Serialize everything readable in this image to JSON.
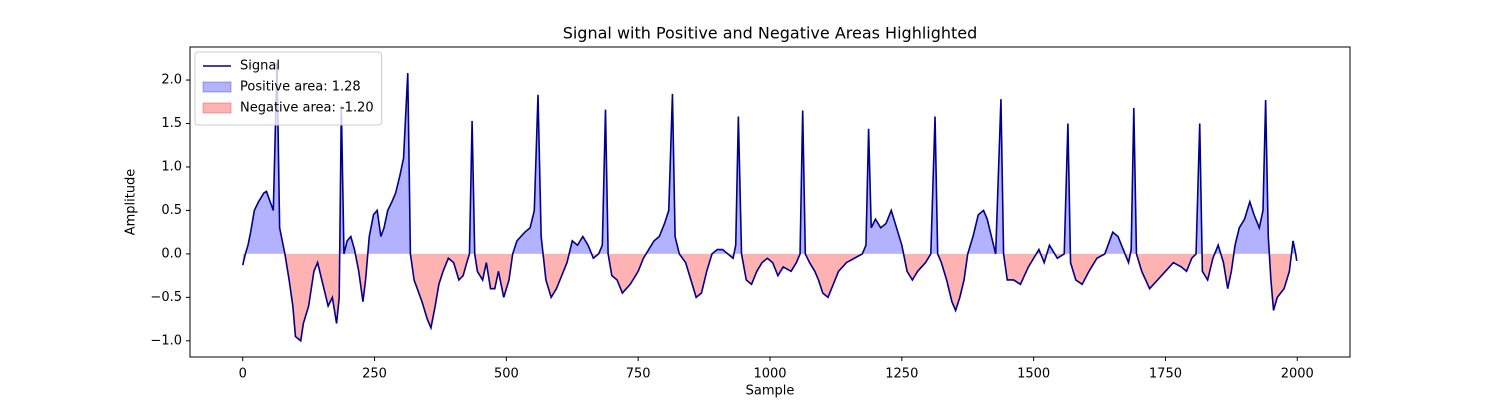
{
  "chart_data": {
    "type": "line",
    "title": "Signal with Positive and Negative Areas Highlighted",
    "xlabel": "Sample",
    "ylabel": "Amplitude",
    "xlim": [
      -100,
      2100
    ],
    "ylim": [
      -1.186,
      2.38
    ],
    "xticks": [
      0,
      250,
      500,
      750,
      1000,
      1250,
      1500,
      1750,
      2000
    ],
    "yticks": [
      {
        "value": -1.0,
        "label": "−1.0"
      },
      {
        "value": -0.5,
        "label": "−0.5"
      },
      {
        "value": 0.0,
        "label": "0.0"
      },
      {
        "value": 0.5,
        "label": "0.5"
      },
      {
        "value": 1.0,
        "label": "1.0"
      },
      {
        "value": 1.5,
        "label": "1.5"
      },
      {
        "value": 2.0,
        "label": "2.0"
      }
    ],
    "legend": "upper left",
    "x": [
      0,
      5,
      10,
      15,
      22,
      30,
      40,
      45,
      52,
      58,
      65,
      70,
      75,
      80,
      88,
      95,
      100,
      110,
      115,
      125,
      135,
      142,
      150,
      162,
      170,
      178,
      183,
      187,
      192,
      198,
      205,
      212,
      220,
      228,
      233,
      240,
      248,
      255,
      262,
      268,
      275,
      283,
      290,
      298,
      305,
      313,
      318,
      325,
      340,
      350,
      357,
      365,
      372,
      380,
      390,
      400,
      410,
      418,
      425,
      430,
      435,
      440,
      445,
      455,
      462,
      470,
      478,
      485,
      495,
      505,
      512,
      520,
      535,
      545,
      553,
      560,
      566,
      575,
      585,
      595,
      605,
      615,
      625,
      635,
      645,
      655,
      665,
      675,
      682,
      688,
      693,
      700,
      710,
      720,
      735,
      750,
      760,
      770,
      780,
      790,
      800,
      808,
      815,
      820,
      828,
      840,
      850,
      860,
      870,
      880,
      890,
      900,
      910,
      920,
      930,
      935,
      940,
      946,
      955,
      965,
      975,
      985,
      995,
      1005,
      1015,
      1025,
      1040,
      1050,
      1057,
      1062,
      1067,
      1075,
      1085,
      1092,
      1100,
      1110,
      1120,
      1130,
      1145,
      1160,
      1175,
      1182,
      1187,
      1192,
      1200,
      1210,
      1220,
      1230,
      1240,
      1250,
      1260,
      1270,
      1280,
      1295,
      1305,
      1313,
      1318,
      1325,
      1335,
      1345,
      1352,
      1360,
      1368,
      1375,
      1385,
      1395,
      1405,
      1412,
      1420,
      1428,
      1438,
      1443,
      1450,
      1462,
      1475,
      1490,
      1500,
      1510,
      1520,
      1530,
      1545,
      1558,
      1565,
      1570,
      1580,
      1592,
      1605,
      1620,
      1635,
      1650,
      1660,
      1670,
      1680,
      1685,
      1690,
      1695,
      1705,
      1720,
      1735,
      1750,
      1765,
      1780,
      1790,
      1800,
      1808,
      1815,
      1820,
      1830,
      1840,
      1850,
      1860,
      1868,
      1875,
      1882,
      1890,
      1900,
      1910,
      1918,
      1928,
      1935,
      1940,
      1945,
      1950,
      1955,
      1962,
      1975,
      1985,
      1992,
      1997,
      1999
    ],
    "series": [
      {
        "name": "Signal",
        "color": "#00008b",
        "values": [
          -0.13,
          0.0,
          0.1,
          0.25,
          0.5,
          0.6,
          0.7,
          0.72,
          0.6,
          0.5,
          2.2,
          0.3,
          0.15,
          0.0,
          -0.3,
          -0.6,
          -0.95,
          -1.0,
          -0.8,
          -0.6,
          -0.2,
          -0.1,
          -0.3,
          -0.6,
          -0.5,
          -0.8,
          -0.5,
          1.7,
          0.0,
          0.15,
          0.2,
          0.05,
          -0.2,
          -0.55,
          -0.3,
          0.2,
          0.45,
          0.5,
          0.2,
          0.3,
          0.5,
          0.6,
          0.7,
          0.9,
          1.1,
          2.08,
          0.0,
          -0.3,
          -0.55,
          -0.75,
          -0.85,
          -0.6,
          -0.35,
          -0.2,
          -0.05,
          -0.1,
          -0.3,
          -0.25,
          -0.1,
          0.0,
          1.53,
          0.0,
          -0.2,
          -0.3,
          -0.1,
          -0.4,
          -0.4,
          -0.2,
          -0.5,
          -0.3,
          0.0,
          0.15,
          0.25,
          0.3,
          0.5,
          1.83,
          0.2,
          -0.3,
          -0.5,
          -0.4,
          -0.25,
          -0.1,
          0.15,
          0.1,
          0.2,
          0.1,
          -0.05,
          0.0,
          0.1,
          1.66,
          0.0,
          -0.25,
          -0.3,
          -0.45,
          -0.35,
          -0.2,
          -0.05,
          0.05,
          0.15,
          0.2,
          0.35,
          0.5,
          1.84,
          0.2,
          0.0,
          -0.1,
          -0.3,
          -0.5,
          -0.45,
          -0.2,
          0.0,
          0.05,
          0.05,
          0.0,
          -0.05,
          0.1,
          1.58,
          0.0,
          -0.3,
          -0.35,
          -0.2,
          -0.1,
          -0.05,
          -0.1,
          -0.25,
          -0.15,
          -0.2,
          -0.1,
          0.0,
          1.65,
          0.0,
          -0.1,
          -0.2,
          -0.3,
          -0.45,
          -0.5,
          -0.35,
          -0.2,
          -0.1,
          -0.05,
          0.0,
          0.1,
          1.44,
          0.3,
          0.4,
          0.3,
          0.35,
          0.5,
          0.3,
          0.1,
          -0.2,
          -0.3,
          -0.2,
          -0.1,
          0.0,
          1.58,
          0.0,
          -0.1,
          -0.3,
          -0.55,
          -0.65,
          -0.5,
          -0.3,
          0.0,
          0.2,
          0.45,
          0.5,
          0.4,
          0.2,
          0.0,
          1.78,
          0.0,
          -0.3,
          -0.3,
          -0.35,
          -0.15,
          -0.05,
          0.05,
          -0.1,
          0.1,
          -0.05,
          0.0,
          1.5,
          -0.1,
          -0.3,
          -0.35,
          -0.2,
          -0.05,
          0.0,
          0.25,
          0.2,
          0.05,
          -0.1,
          0.05,
          1.68,
          0.0,
          -0.2,
          -0.4,
          -0.3,
          -0.2,
          -0.1,
          -0.15,
          -0.2,
          -0.05,
          0.0,
          1.5,
          -0.2,
          -0.3,
          -0.05,
          0.1,
          -0.1,
          -0.4,
          -0.2,
          0.1,
          0.3,
          0.4,
          0.6,
          0.45,
          0.3,
          0.5,
          1.77,
          0.2,
          -0.3,
          -0.65,
          -0.5,
          -0.4,
          -0.2,
          0.15,
          0.0,
          -0.08
        ]
      }
    ],
    "fills": [
      {
        "name": "Positive area: 1.28",
        "color": "#0000ff",
        "opacity": 0.3,
        "sign": "positive"
      },
      {
        "name": "Negative area: -1.20",
        "color": "#ff0000",
        "opacity": 0.3,
        "sign": "negative"
      }
    ]
  }
}
